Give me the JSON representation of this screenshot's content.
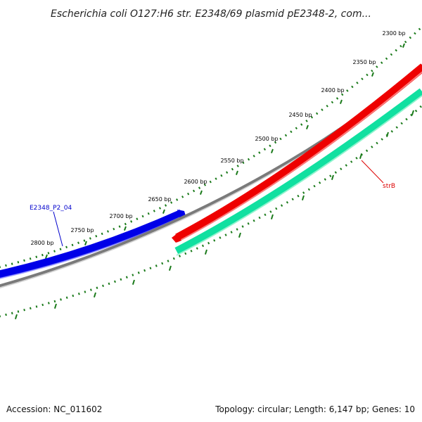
{
  "title": "Escherichia coli O127:H6 str. E2348/69 plasmid pE2348-2, com...",
  "footer": {
    "accession": "Accession: NC_011602",
    "summary": "Topology: circular; Length: 6,147 bp; Genes: 10"
  },
  "colors": {
    "forward_gene": "#0000e8",
    "reverse_gene_red": "#ee0000",
    "reverse_gene_green": "#10e0a0",
    "backbone": "#7a7a7a",
    "tick": "#1a7a1a"
  },
  "ticks": [
    {
      "label": "2300 bp"
    },
    {
      "label": "2350 bp"
    },
    {
      "label": "2400 bp"
    },
    {
      "label": "2450 bp"
    },
    {
      "label": "2500 bp"
    },
    {
      "label": "2550 bp"
    },
    {
      "label": "2600 bp"
    },
    {
      "label": "2650 bp"
    },
    {
      "label": "2700 bp"
    },
    {
      "label": "2750 bp"
    },
    {
      "label": "2800 bp"
    }
  ],
  "genes": [
    {
      "name": "E2348_P2_04",
      "strand": "forward"
    },
    {
      "name": "strB",
      "strand": "reverse"
    }
  ]
}
